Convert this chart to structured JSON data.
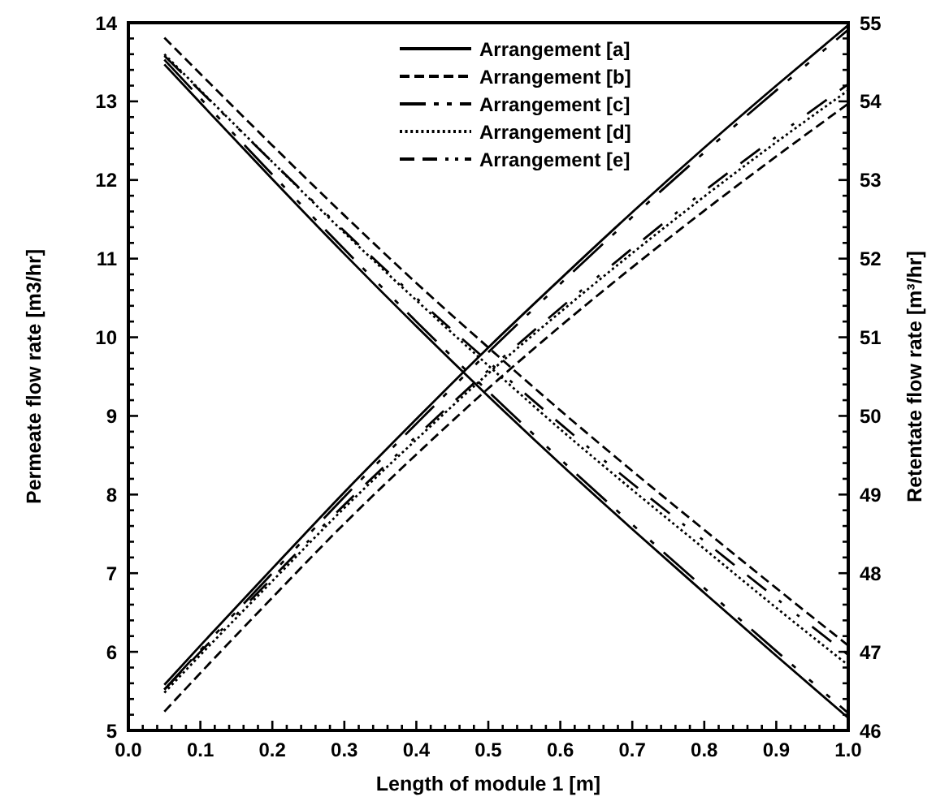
{
  "chart_data": {
    "type": "line",
    "xlabel": "Length of module 1 [m]",
    "ylabel": "Permeate flow rate [m3/hr]",
    "y2label": "Retentate flow rate [m³/hr]",
    "x": [
      0.05,
      0.1,
      0.2,
      0.3,
      0.4,
      0.5,
      0.6,
      0.7,
      0.8,
      0.9,
      1.0
    ],
    "xlim": [
      0,
      1
    ],
    "ylim": [
      5,
      14
    ],
    "y2lim": [
      46,
      55
    ],
    "xticks": [
      {
        "value": 0,
        "label": "0.0"
      },
      {
        "value": 0.02,
        "label": null
      },
      {
        "value": 0.04,
        "label": null
      },
      {
        "value": 0.06,
        "label": null
      },
      {
        "value": 0.08,
        "label": null
      },
      0.1,
      {
        "value": 0.12,
        "label": null
      },
      {
        "value": 0.14,
        "label": null
      },
      {
        "value": 0.16,
        "label": null
      },
      {
        "value": 0.18,
        "label": null
      },
      0.2,
      {
        "value": 0.22,
        "label": null
      },
      {
        "value": 0.24,
        "label": null
      },
      {
        "value": 0.26,
        "label": null
      },
      {
        "value": 0.28,
        "label": null
      },
      0.3,
      {
        "value": 0.32,
        "label": null
      },
      {
        "value": 0.34,
        "label": null
      },
      {
        "value": 0.36,
        "label": null
      },
      {
        "value": 0.38,
        "label": null
      },
      0.4,
      {
        "value": 0.42,
        "label": null
      },
      {
        "value": 0.44,
        "label": null
      },
      {
        "value": 0.46,
        "label": null
      },
      {
        "value": 0.48,
        "label": null
      },
      0.5,
      {
        "value": 0.52,
        "label": null
      },
      {
        "value": 0.54,
        "label": null
      },
      {
        "value": 0.56,
        "label": null
      },
      {
        "value": 0.58,
        "label": null
      },
      0.6,
      {
        "value": 0.62,
        "label": null
      },
      {
        "value": 0.64,
        "label": null
      },
      {
        "value": 0.66,
        "label": null
      },
      {
        "value": 0.68,
        "label": null
      },
      0.7,
      {
        "value": 0.72,
        "label": null
      },
      {
        "value": 0.74,
        "label": null
      },
      {
        "value": 0.76,
        "label": null
      },
      {
        "value": 0.78,
        "label": null
      },
      0.8,
      {
        "value": 0.82,
        "label": null
      },
      {
        "value": 0.84,
        "label": null
      },
      {
        "value": 0.86,
        "label": null
      },
      {
        "value": 0.88,
        "label": null
      },
      0.9,
      {
        "value": 0.92,
        "label": null
      },
      {
        "value": 0.94,
        "label": null
      },
      {
        "value": 0.96,
        "label": null
      },
      {
        "value": 0.98,
        "label": null
      },
      {
        "value": 1,
        "label": "1.0"
      }
    ],
    "yticks": [
      5,
      {
        "value": 5.2,
        "label": null
      },
      {
        "value": 5.4,
        "label": null
      },
      {
        "value": 5.6,
        "label": null
      },
      {
        "value": 5.8,
        "label": null
      },
      6,
      {
        "value": 6.2,
        "label": null
      },
      {
        "value": 6.4,
        "label": null
      },
      {
        "value": 6.6,
        "label": null
      },
      {
        "value": 6.8,
        "label": null
      },
      7,
      {
        "value": 7.2,
        "label": null
      },
      {
        "value": 7.4,
        "label": null
      },
      {
        "value": 7.6,
        "label": null
      },
      {
        "value": 7.8,
        "label": null
      },
      8,
      {
        "value": 8.2,
        "label": null
      },
      {
        "value": 8.4,
        "label": null
      },
      {
        "value": 8.6,
        "label": null
      },
      {
        "value": 8.8,
        "label": null
      },
      9,
      {
        "value": 9.2,
        "label": null
      },
      {
        "value": 9.4,
        "label": null
      },
      {
        "value": 9.6,
        "label": null
      },
      {
        "value": 9.8,
        "label": null
      },
      10,
      {
        "value": 10.2,
        "label": null
      },
      {
        "value": 10.4,
        "label": null
      },
      {
        "value": 10.6,
        "label": null
      },
      {
        "value": 10.8,
        "label": null
      },
      11,
      {
        "value": 11.2,
        "label": null
      },
      {
        "value": 11.4,
        "label": null
      },
      {
        "value": 11.6,
        "label": null
      },
      {
        "value": 11.8,
        "label": null
      },
      12,
      {
        "value": 12.2,
        "label": null
      },
      {
        "value": 12.4,
        "label": null
      },
      {
        "value": 12.6,
        "label": null
      },
      {
        "value": 12.8,
        "label": null
      },
      13,
      {
        "value": 13.2,
        "label": null
      },
      {
        "value": 13.4,
        "label": null
      },
      {
        "value": 13.6,
        "label": null
      },
      {
        "value": 13.8,
        "label": null
      },
      14
    ],
    "y2ticks": [
      46,
      {
        "value": 46.2,
        "label": null
      },
      {
        "value": 46.4,
        "label": null
      },
      {
        "value": 46.6,
        "label": null
      },
      {
        "value": 46.8,
        "label": null
      },
      47,
      {
        "value": 47.2,
        "label": null
      },
      {
        "value": 47.4,
        "label": null
      },
      {
        "value": 47.6,
        "label": null
      },
      {
        "value": 47.8,
        "label": null
      },
      48,
      {
        "value": 48.2,
        "label": null
      },
      {
        "value": 48.4,
        "label": null
      },
      {
        "value": 48.6,
        "label": null
      },
      {
        "value": 48.8,
        "label": null
      },
      49,
      {
        "value": 49.2,
        "label": null
      },
      {
        "value": 49.4,
        "label": null
      },
      {
        "value": 49.6,
        "label": null
      },
      {
        "value": 49.8,
        "label": null
      },
      50,
      {
        "value": 50.2,
        "label": null
      },
      {
        "value": 50.4,
        "label": null
      },
      {
        "value": 50.6,
        "label": null
      },
      {
        "value": 50.8,
        "label": null
      },
      51,
      {
        "value": 51.2,
        "label": null
      },
      {
        "value": 51.4,
        "label": null
      },
      {
        "value": 51.6,
        "label": null
      },
      {
        "value": 51.8,
        "label": null
      },
      52,
      {
        "value": 52.2,
        "label": null
      },
      {
        "value": 52.4,
        "label": null
      },
      {
        "value": 52.6,
        "label": null
      },
      {
        "value": 52.8,
        "label": null
      },
      53,
      {
        "value": 53.2,
        "label": null
      },
      {
        "value": 53.4,
        "label": null
      },
      {
        "value": 53.6,
        "label": null
      },
      {
        "value": 53.8,
        "label": null
      },
      54,
      {
        "value": 54.2,
        "label": null
      },
      {
        "value": 54.4,
        "label": null
      },
      {
        "value": 54.6,
        "label": null
      },
      {
        "value": 54.8,
        "label": null
      },
      55
    ],
    "legend": "top",
    "series": [
      {
        "name": "Arrangement [a]",
        "color": "#000000",
        "line_style": "solid",
        "values": [
          5.58,
          6.08,
          7.06,
          8.03,
          8.96,
          9.87,
          10.74,
          11.59,
          12.41,
          13.2,
          13.97
        ]
      },
      {
        "name": "Arrangement [b]",
        "color": "#000000",
        "line_style": "dashed",
        "values": [
          5.24,
          5.73,
          6.69,
          7.63,
          8.51,
          9.35,
          10.14,
          10.89,
          11.61,
          12.3,
          12.97
        ]
      },
      {
        "name": "Arrangement [c]",
        "color": "#000000",
        "line_style": "dashdot",
        "values": [
          5.52,
          6.02,
          7.0,
          7.97,
          8.9,
          9.81,
          10.68,
          11.53,
          12.35,
          13.14,
          13.91
        ]
      },
      {
        "name": "Arrangement [d]",
        "color": "#000000",
        "line_style": "dotted",
        "values": [
          5.48,
          5.96,
          6.9,
          7.83,
          8.7,
          9.54,
          10.32,
          11.07,
          11.79,
          12.48,
          13.14
        ]
      },
      {
        "name": "Arrangement [e]",
        "color": "#000000",
        "line_style": "dashdotdot",
        "values": [
          5.52,
          6.0,
          6.94,
          7.87,
          8.74,
          9.58,
          10.37,
          11.13,
          11.86,
          12.55,
          13.22
        ]
      },
      {
        "color": "#000000",
        "line_style": "solid",
        "axis": "y2",
        "values": [
          54.47,
          53.98,
          53.01,
          52.06,
          51.14,
          50.25,
          49.39,
          48.56,
          47.75,
          46.95,
          46.16
        ]
      },
      {
        "color": "#000000",
        "line_style": "dashed",
        "axis": "y2",
        "values": [
          54.81,
          54.35,
          53.44,
          52.55,
          51.69,
          50.87,
          50.07,
          49.3,
          48.55,
          47.81,
          47.08
        ]
      },
      {
        "color": "#000000",
        "line_style": "dashdot",
        "axis": "y2",
        "values": [
          54.53,
          54.04,
          53.07,
          52.12,
          51.2,
          50.31,
          49.45,
          48.62,
          47.81,
          47.01,
          46.22
        ]
      },
      {
        "color": "#000000",
        "line_style": "dotted",
        "axis": "y2",
        "values": [
          54.6,
          54.14,
          53.23,
          52.33,
          51.47,
          50.64,
          49.83,
          49.06,
          48.31,
          47.56,
          46.83
        ]
      },
      {
        "color": "#000000",
        "line_style": "dashdotdot",
        "axis": "y2",
        "values": [
          54.58,
          54.13,
          53.23,
          52.35,
          51.5,
          50.69,
          49.9,
          49.14,
          48.41,
          47.68,
          46.96
        ]
      }
    ]
  }
}
